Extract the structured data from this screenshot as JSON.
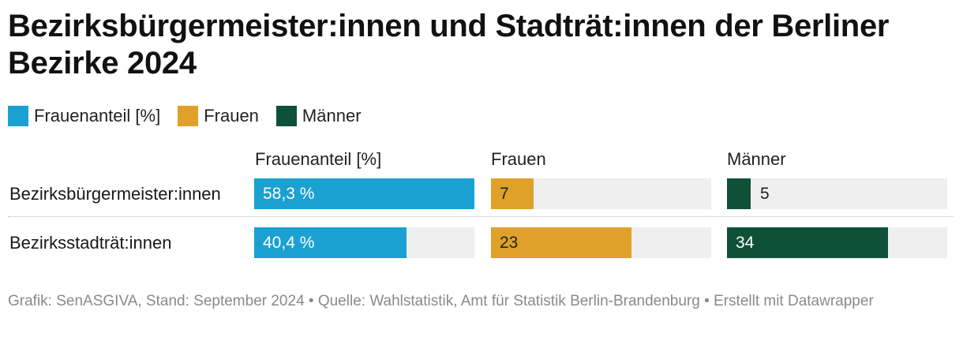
{
  "title": "Bezirksbürgermeister:innen und Stadträt:innen der Berliner Bezirke 2024",
  "legend": [
    {
      "label": "Frauenanteil [%]",
      "color": "#1aa1d1"
    },
    {
      "label": "Frauen",
      "color": "#e0a12a"
    },
    {
      "label": "Männer",
      "color": "#0f5038"
    }
  ],
  "footer": "Grafik: SenASGIVA, Stand: September 2024 • Quelle: Wahlstatistik, Amt für Statistik Berlin-Brandenburg • Erstellt mit Datawrapper",
  "chart_data": {
    "type": "bar",
    "title": "Bezirksbürgermeister:innen und Stadträt:innen der Berliner Bezirke 2024",
    "categories": [
      "Bezirksbürgermeister:innen",
      "Bezirksstadträt:innen"
    ],
    "series": [
      {
        "name": "Frauenanteil [%]",
        "values": [
          58.3,
          40.4
        ],
        "labels": [
          "58,3 %",
          "40,4 %"
        ],
        "max": 58.3,
        "color": "#1aa1d1",
        "text_color": "#ffffff"
      },
      {
        "name": "Frauen",
        "values": [
          7,
          23
        ],
        "labels": [
          "7",
          "23"
        ],
        "max": 36,
        "color": "#e0a12a",
        "text_color": "#222222"
      },
      {
        "name": "Männer",
        "values": [
          5,
          34
        ],
        "labels": [
          "5",
          "34"
        ],
        "max": 46.5,
        "color": "#0f5038",
        "text_color": "#ffffff"
      }
    ],
    "legend": "top-left",
    "grid": false
  }
}
